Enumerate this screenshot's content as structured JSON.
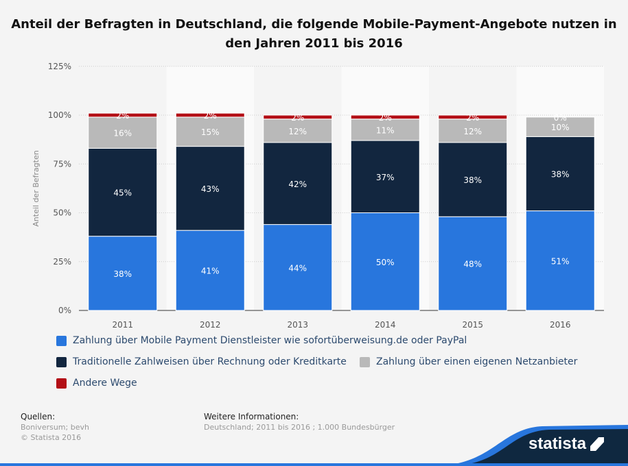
{
  "chart_data": {
    "type": "bar",
    "stacked": true,
    "title": "Anteil der Befragten in Deutschland, die folgende Mobile-Payment-Angebote nutzen in den Jahren 2011 bis 2016",
    "ylabel": "Anteil der Befragten",
    "xlabel": "",
    "ylim": [
      0,
      125
    ],
    "yticks": [
      "0%",
      "25%",
      "50%",
      "75%",
      "100%",
      "125%"
    ],
    "categories": [
      "2011",
      "2012",
      "2013",
      "2014",
      "2015",
      "2016"
    ],
    "series": [
      {
        "name": "Zahlung über Mobile Payment Dienstleister wie sofortüberweisung.de oder PayPal",
        "color": "#2876dd",
        "values": [
          38,
          41,
          44,
          50,
          48,
          51
        ]
      },
      {
        "name": "Traditionelle Zahlweisen über Rechnung oder Kreditkarte",
        "color": "#12263f",
        "values": [
          45,
          43,
          42,
          37,
          38,
          38
        ]
      },
      {
        "name": "Zahlung über einen eigenen Netzanbieter",
        "color": "#b9b9b9",
        "values": [
          16,
          15,
          12,
          11,
          12,
          10
        ]
      },
      {
        "name": "Andere Wege",
        "color": "#b30f16",
        "values": [
          2,
          2,
          2,
          2,
          2,
          0
        ]
      }
    ],
    "grid": true,
    "legend_position": "bottom"
  },
  "footer": {
    "sources_label": "Quellen:",
    "sources": "Boniversum; bevh",
    "copyright": "© Statista 2016",
    "info_label": "Weitere Informationen:",
    "info": "Deutschland; 2011 bis 2016 ; 1.000 Bundesbürger",
    "logo": "statista"
  }
}
